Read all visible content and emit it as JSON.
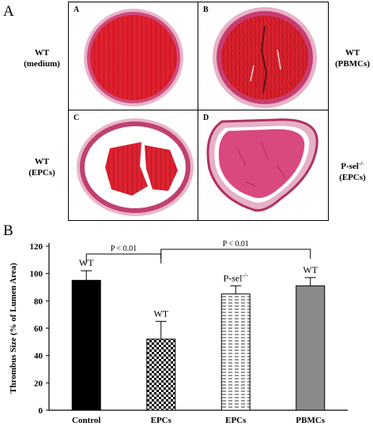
{
  "figure": {
    "part_a_label": "A",
    "part_b_label": "B",
    "panels": [
      {
        "letter": "A",
        "condition": "WT",
        "treatment": "(medium)"
      },
      {
        "letter": "B",
        "condition": "WT",
        "treatment": "(PBMCs)"
      },
      {
        "letter": "C",
        "condition": "WT",
        "treatment": "(EPCs)"
      },
      {
        "letter": "D",
        "condition": "P-sel",
        "superscript": "-/-",
        "treatment": "(EPCs)"
      }
    ]
  },
  "chart_data": {
    "type": "bar",
    "categories": [
      "Control",
      "EPCs",
      "EPCs",
      "PBMCs"
    ],
    "values": [
      95,
      52,
      85,
      91
    ],
    "errors": [
      7,
      13,
      6,
      6
    ],
    "bar_labels": [
      "WT",
      "WT",
      "P-sel",
      "WT"
    ],
    "bar_label_superscripts": [
      "",
      "",
      "-/-",
      ""
    ],
    "bar_styles": [
      "solid-black",
      "checkerboard",
      "dashes",
      "solid-gray"
    ],
    "colors": {
      "control": "#000000",
      "pbmcs": "#8a8a8a"
    },
    "ylabel": "Thrombus Size (% of Lumen Area)",
    "ylim": [
      0,
      120
    ],
    "yticks": [
      0,
      20,
      40,
      60,
      80,
      100,
      120
    ],
    "grid": false,
    "significance": [
      {
        "from": 0,
        "to": 1,
        "label": "P < 0.01"
      },
      {
        "from": 1,
        "to": 3,
        "label": "P < 0.01"
      }
    ]
  }
}
